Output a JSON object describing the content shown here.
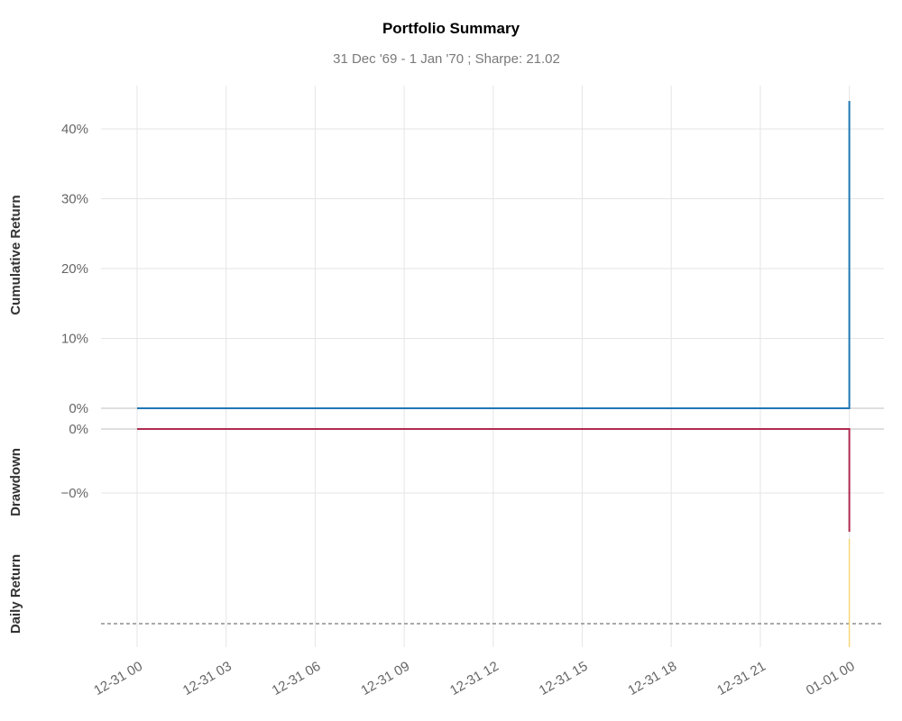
{
  "chart_data": {
    "title": "Portfolio Summary",
    "subtitle": "31 Dec '69 -  1 Jan '70 ;  Sharpe: 21.02",
    "x_ticks": [
      "12-31 00",
      "12-31 03",
      "12-31 06",
      "12-31 09",
      "12-31 12",
      "12-31 15",
      "12-31 18",
      "12-31 21",
      "01-01 00"
    ],
    "x_range_hours": [
      -0.5,
      24.85
    ],
    "panels": [
      {
        "type": "line",
        "ylabel": "Cumulative Return",
        "ylim": [
          0,
          0.43
        ],
        "yticks": [
          0,
          0.1,
          0.2,
          0.3,
          0.4
        ],
        "ytick_labels": [
          "0%",
          "10%",
          "20%",
          "30%",
          "40%"
        ],
        "series": [
          {
            "color": "#1f77b4",
            "x": [
              0,
              24,
              24
            ],
            "y": [
              0,
              0,
              0.44
            ]
          }
        ]
      },
      {
        "type": "line",
        "ylabel": "Drawdown",
        "ytick_labels": [
          "0%",
          "−0%"
        ],
        "series": [
          {
            "color": "#b02a50",
            "x": [
              0,
              24,
              24
            ],
            "y": [
              0,
              0,
              -1.6e-06
            ]
          }
        ]
      },
      {
        "type": "bar",
        "ylabel": "Daily Return",
        "series": [
          {
            "color": "#f5d77a",
            "x": [
              24
            ],
            "y": [
              0.44
            ]
          }
        ]
      }
    ],
    "grid": true,
    "legend": "none"
  }
}
